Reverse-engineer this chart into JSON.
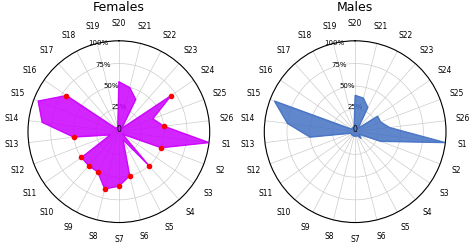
{
  "n_spokes": 26,
  "labels": [
    "S1",
    "S2",
    "S3",
    "S4",
    "S5",
    "S6",
    "S7",
    "S8",
    "S9",
    "S10",
    "S11",
    "S12",
    "S13",
    "S14",
    "S15",
    "S16",
    "S17",
    "S18",
    "S19",
    "S20",
    "S21",
    "S22",
    "S23",
    "S24",
    "S25",
    "S26"
  ],
  "females_values": [
    100,
    50,
    5,
    50,
    10,
    50,
    60,
    65,
    50,
    50,
    50,
    10,
    50,
    85,
    95,
    70,
    5,
    5,
    5,
    55,
    50,
    40,
    5,
    70,
    40,
    50
  ],
  "males_values": [
    100,
    30,
    5,
    10,
    5,
    5,
    5,
    5,
    5,
    5,
    5,
    5,
    50,
    75,
    95,
    5,
    5,
    5,
    5,
    40,
    38,
    30,
    5,
    30,
    30,
    38
  ],
  "females_red_dots": [
    3,
    5,
    6,
    7,
    8,
    9,
    10,
    12,
    15,
    23,
    1,
    25
  ],
  "males_red_dots": [],
  "female_color": "#CC00FF",
  "male_color": "#4472C4",
  "red_dot_color": "#FF0000",
  "grid_color": "#CCCCCC",
  "background_color": "#FFFFFF",
  "title_female": "Females",
  "title_male": "Males",
  "center_label": "0",
  "title_fontsize": 9,
  "label_fontsize": 5.5
}
